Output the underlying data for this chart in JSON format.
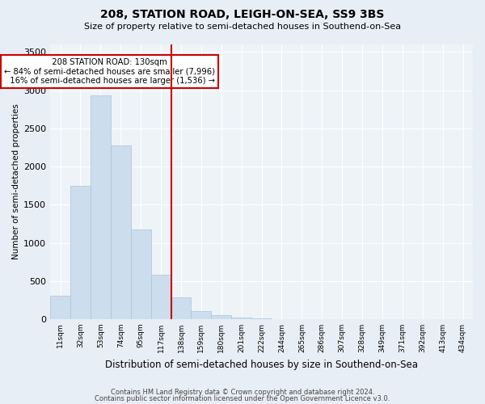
{
  "title": "208, STATION ROAD, LEIGH-ON-SEA, SS9 3BS",
  "subtitle": "Size of property relative to semi-detached houses in Southend-on-Sea",
  "xlabel": "Distribution of semi-detached houses by size in Southend-on-Sea",
  "ylabel": "Number of semi-detached properties",
  "categories": [
    "11sqm",
    "32sqm",
    "53sqm",
    "74sqm",
    "95sqm",
    "117sqm",
    "138sqm",
    "159sqm",
    "180sqm",
    "201sqm",
    "222sqm",
    "244sqm",
    "265sqm",
    "286sqm",
    "307sqm",
    "328sqm",
    "349sqm",
    "371sqm",
    "392sqm",
    "413sqm",
    "434sqm"
  ],
  "values": [
    310,
    1750,
    2930,
    2280,
    1170,
    580,
    280,
    100,
    50,
    20,
    8,
    3,
    1,
    0,
    0,
    0,
    0,
    0,
    0,
    0,
    0
  ],
  "bar_color": "#ccdded",
  "bar_edge_color": "#aac4d8",
  "vline_index": 6,
  "vline_color": "#cc0000",
  "property_label": "208 STATION ROAD: 130sqm",
  "pct_smaller": 84,
  "pct_larger": 16,
  "n_smaller": 7996,
  "n_larger": 1536,
  "annotation_box_color": "#cc0000",
  "ylim_max": 3600,
  "yticks": [
    0,
    500,
    1000,
    1500,
    2000,
    2500,
    3000,
    3500
  ],
  "bg_color": "#e8eef5",
  "plot_bg_color": "#eef3f8",
  "grid_color": "#ffffff",
  "footer_line1": "Contains HM Land Registry data © Crown copyright and database right 2024.",
  "footer_line2": "Contains public sector information licensed under the Open Government Licence v3.0."
}
